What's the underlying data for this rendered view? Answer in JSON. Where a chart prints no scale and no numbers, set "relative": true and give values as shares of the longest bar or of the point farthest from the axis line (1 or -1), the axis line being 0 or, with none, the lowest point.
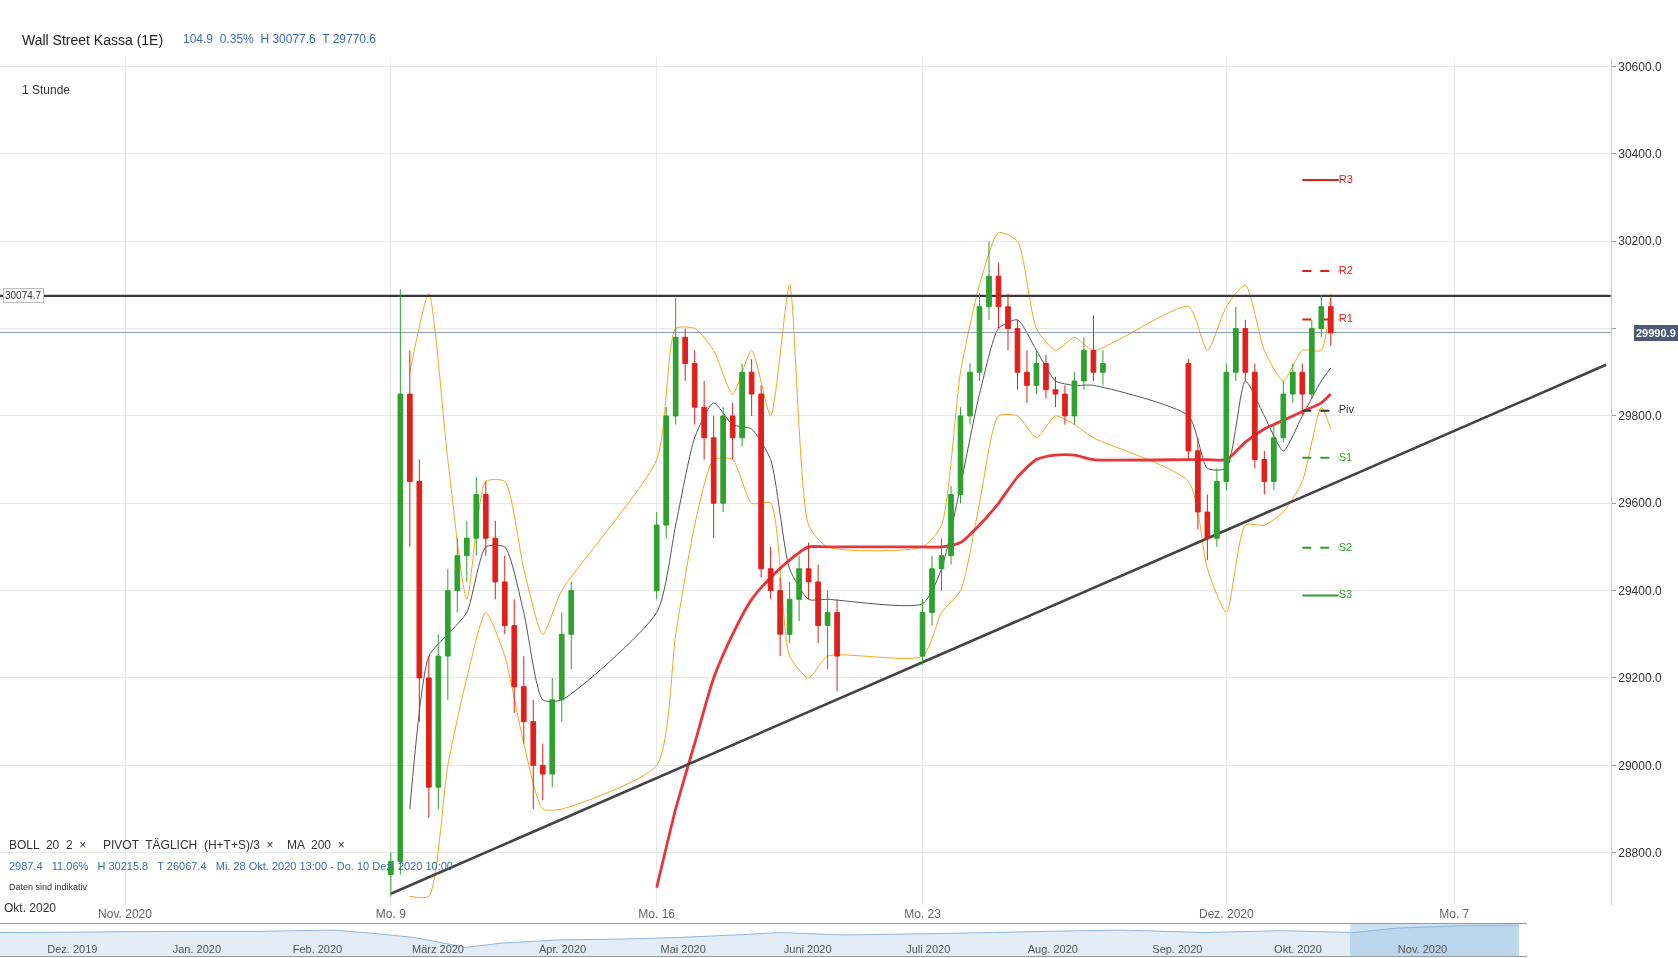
{
  "chart_data": [
    {
      "type": "candlestick",
      "title": "Wall Street Kassa (1E)",
      "subtitle": "104.9  0.35%  H 30077.6  T 29770.6",
      "annotations": [
        "1 Stunde",
        "BOLL  20  2  ×",
        "PIVOT  TÄGLICH  (H+T+S)/3  ×",
        "MA  200  ×",
        "2987.4   11.06%   H 30215.8   T 26067.4   Mi. 28 Okt. 2020 13:00 - Do. 10 Dez. 2020 10:00",
        "Daten sind indikativ",
        "Okt. 2020"
      ],
      "x": [
        "2020-11-09T00:00",
        "2020-11-09T06:00",
        "2020-11-09T12:00",
        "2020-11-09T18:00",
        "2020-11-10T00:00",
        "2020-11-10T06:00",
        "2020-11-10T12:00",
        "2020-11-10T18:00",
        "2020-11-11T00:00",
        "2020-11-11T06:00",
        "2020-11-11T12:00",
        "2020-11-11T18:00",
        "2020-11-12T00:00",
        "2020-11-12T06:00",
        "2020-11-12T12:00",
        "2020-11-12T18:00",
        "2020-11-13T00:00",
        "2020-11-13T06:00",
        "2020-11-13T12:00",
        "2020-11-13T18:00",
        "2020-11-16T00:00",
        "2020-11-16T06:00",
        "2020-11-16T12:00",
        "2020-11-16T18:00",
        "2020-11-17T00:00",
        "2020-11-17T06:00",
        "2020-11-17T12:00",
        "2020-11-17T18:00",
        "2020-11-18T00:00",
        "2020-11-18T06:00",
        "2020-11-18T12:00",
        "2020-11-18T18:00",
        "2020-11-19T00:00",
        "2020-11-19T06:00",
        "2020-11-19T12:00",
        "2020-11-19T18:00",
        "2020-11-20T00:00",
        "2020-11-20T06:00",
        "2020-11-20T12:00",
        "2020-11-20T18:00",
        "2020-11-23T00:00",
        "2020-11-23T06:00",
        "2020-11-23T12:00",
        "2020-11-23T18:00",
        "2020-11-24T00:00",
        "2020-11-24T06:00",
        "2020-11-24T12:00",
        "2020-11-24T18:00",
        "2020-11-25T00:00",
        "2020-11-25T06:00",
        "2020-11-25T12:00",
        "2020-11-25T18:00",
        "2020-11-26T00:00",
        "2020-11-26T06:00",
        "2020-11-26T12:00",
        "2020-11-26T18:00",
        "2020-11-27T00:00",
        "2020-11-27T06:00",
        "2020-11-27T12:00",
        "2020-11-27T18:00",
        "2020-11-30T00:00",
        "2020-11-30T06:00",
        "2020-11-30T12:00",
        "2020-11-30T18:00",
        "2020-12-01T00:00",
        "2020-12-01T06:00",
        "2020-12-01T12:00",
        "2020-12-01T18:00",
        "2020-12-02T00:00",
        "2020-12-02T06:00",
        "2020-12-02T12:00",
        "2020-12-02T18:00",
        "2020-12-03T00:00",
        "2020-12-03T06:00",
        "2020-12-03T12:00",
        "2020-12-03T18:00"
      ],
      "ohlc": [
        [
          28750,
          28800,
          28700,
          28780
        ],
        [
          28780,
          30090,
          28750,
          29850
        ],
        [
          29850,
          29950,
          29500,
          29650
        ],
        [
          29650,
          29700,
          29100,
          29200
        ],
        [
          29200,
          29250,
          28880,
          28950
        ],
        [
          28950,
          29300,
          28900,
          29250
        ],
        [
          29250,
          29450,
          29150,
          29400
        ],
        [
          29400,
          29520,
          29350,
          29480
        ],
        [
          29480,
          29560,
          29420,
          29520
        ],
        [
          29520,
          29660,
          29480,
          29620
        ],
        [
          29620,
          29650,
          29480,
          29520
        ],
        [
          29520,
          29560,
          29380,
          29420
        ],
        [
          29420,
          29480,
          29300,
          29320
        ],
        [
          29320,
          29380,
          29120,
          29180
        ],
        [
          29180,
          29250,
          29050,
          29100
        ],
        [
          29100,
          29150,
          28900,
          29000
        ],
        [
          29000,
          29050,
          28920,
          28980
        ],
        [
          28980,
          29200,
          28950,
          29150
        ],
        [
          29150,
          29350,
          29100,
          29300
        ],
        [
          29300,
          29420,
          29220,
          29400
        ],
        [
          29400,
          29580,
          29380,
          29550
        ],
        [
          29550,
          29820,
          29520,
          29800
        ],
        [
          29800,
          30070,
          29780,
          29980
        ],
        [
          29980,
          30000,
          29880,
          29920
        ],
        [
          29920,
          29950,
          29780,
          29820
        ],
        [
          29820,
          29880,
          29700,
          29750
        ],
        [
          29750,
          29800,
          29520,
          29600
        ],
        [
          29600,
          29820,
          29580,
          29800
        ],
        [
          29800,
          29830,
          29700,
          29750
        ],
        [
          29750,
          29920,
          29730,
          29900
        ],
        [
          29900,
          29930,
          29800,
          29850
        ],
        [
          29850,
          29870,
          29430,
          29450
        ],
        [
          29450,
          29500,
          29380,
          29400
        ],
        [
          29400,
          29430,
          29250,
          29300
        ],
        [
          29300,
          29420,
          29280,
          29380
        ],
        [
          29380,
          29480,
          29330,
          29450
        ],
        [
          29450,
          29510,
          29380,
          29420
        ],
        [
          29420,
          29460,
          29280,
          29320
        ],
        [
          29320,
          29400,
          29220,
          29350
        ],
        [
          29350,
          29380,
          29170,
          29250
        ],
        [
          29250,
          29380,
          29230,
          29350
        ],
        [
          29350,
          29480,
          29320,
          29450
        ],
        [
          29450,
          29520,
          29400,
          29480
        ],
        [
          29480,
          29640,
          29460,
          29620
        ],
        [
          29620,
          29820,
          29600,
          29800
        ],
        [
          29800,
          29920,
          29780,
          29900
        ],
        [
          29900,
          30080,
          29880,
          30050
        ],
        [
          30050,
          30200,
          30020,
          30120
        ],
        [
          30120,
          30150,
          30000,
          30050
        ],
        [
          30050,
          30080,
          29950,
          30000
        ],
        [
          30000,
          30020,
          29860,
          29900
        ],
        [
          29900,
          29950,
          29830,
          29870
        ],
        [
          29870,
          29950,
          29850,
          29920
        ],
        [
          29920,
          29940,
          29840,
          29860
        ],
        [
          29860,
          29890,
          29820,
          29850
        ],
        [
          29850,
          29870,
          29780,
          29800
        ],
        [
          29800,
          29900,
          29780,
          29880
        ],
        [
          29880,
          29980,
          29860,
          29950
        ],
        [
          29950,
          30030,
          29880,
          29900
        ],
        [
          29900,
          29950,
          29870,
          29920
        ],
        [
          29920,
          29930,
          29700,
          29720
        ],
        [
          29720,
          29750,
          29540,
          29580
        ],
        [
          29580,
          29620,
          29470,
          29520
        ],
        [
          29520,
          29680,
          29500,
          29650
        ],
        [
          29650,
          29920,
          29630,
          29900
        ],
        [
          29900,
          30050,
          29880,
          30000
        ],
        [
          30000,
          30020,
          29880,
          29900
        ],
        [
          29900,
          29920,
          29680,
          29700
        ],
        [
          29700,
          29720,
          29620,
          29650
        ],
        [
          29650,
          29780,
          29630,
          29750
        ],
        [
          29750,
          29880,
          29740,
          29850
        ],
        [
          29850,
          29920,
          29830,
          29900
        ],
        [
          29900,
          29920,
          29800,
          29850
        ],
        [
          29850,
          30020,
          29840,
          30000
        ],
        [
          30000,
          30077,
          29980,
          30050
        ],
        [
          30050,
          30070,
          29960,
          29990
        ]
      ],
      "series": [
        {
          "type": "line",
          "color": "#f5a623",
          "x": [
            "2020-11-09T12:00",
            "2020-11-10T00:00",
            "2020-11-10T12:00",
            "2020-11-11T00:00",
            "2020-11-11T12:00",
            "2020-11-12T00:00",
            "2020-11-12T12:00",
            "2020-11-13T00:00",
            "2020-11-13T12:00",
            "2020-11-16T00:00",
            "2020-11-16T12:00",
            "2020-11-17T00:00",
            "2020-11-17T12:00",
            "2020-11-18T00:00",
            "2020-11-18T12:00",
            "2020-11-19T00:00",
            "2020-11-19T12:00",
            "2020-11-20T00:00",
            "2020-11-20T12:00",
            "2020-11-23T00:00",
            "2020-11-23T12:00",
            "2020-11-24T00:00",
            "2020-11-24T12:00",
            "2020-11-25T00:00",
            "2020-11-25T12:00",
            "2020-11-26T00:00",
            "2020-11-26T12:00",
            "2020-11-27T00:00",
            "2020-11-27T12:00",
            "2020-11-30T00:00",
            "2020-11-30T12:00",
            "2020-12-01T00:00",
            "2020-12-01T12:00",
            "2020-12-02T00:00",
            "2020-12-02T12:00",
            "2020-12-03T00:00",
            "2020-12-03T12:00",
            "2020-12-03T18:00"
          ],
          "values": [
            28700,
            28700,
            29000,
            29200,
            29350,
            29250,
            29050,
            28900,
            28900,
            29000,
            29300,
            29550,
            29700,
            29700,
            29600,
            29600,
            29250,
            29200,
            29250,
            29250,
            29350,
            29400,
            29600,
            29800,
            29800,
            29750,
            29800,
            29780,
            29750,
            29650,
            29450,
            29350,
            29550,
            29550,
            29580,
            29650,
            29820,
            29770
          ]
        },
        {
          "type": "line",
          "color": "#f5a623",
          "x": [
            "2020-11-09T12:00",
            "2020-11-10T00:00",
            "2020-11-10T12:00",
            "2020-11-11T00:00",
            "2020-11-11T12:00",
            "2020-11-12T00:00",
            "2020-11-12T12:00",
            "2020-11-13T00:00",
            "2020-11-13T12:00",
            "2020-11-16T00:00",
            "2020-11-16T12:00",
            "2020-11-17T00:00",
            "2020-11-17T12:00",
            "2020-11-18T00:00",
            "2020-11-18T12:00",
            "2020-11-19T00:00",
            "2020-11-19T12:00",
            "2020-11-20T00:00",
            "2020-11-20T12:00",
            "2020-11-23T00:00",
            "2020-11-23T12:00",
            "2020-11-24T00:00",
            "2020-11-24T12:00",
            "2020-11-25T00:00",
            "2020-11-25T12:00",
            "2020-11-26T00:00",
            "2020-11-26T12:00",
            "2020-11-27T00:00",
            "2020-11-27T12:00",
            "2020-11-30T00:00",
            "2020-11-30T12:00",
            "2020-12-01T00:00",
            "2020-12-01T12:00",
            "2020-12-02T00:00",
            "2020-12-02T12:00",
            "2020-12-03T00:00",
            "2020-12-03T12:00",
            "2020-12-03T18:00"
          ],
          "values": [
            29900,
            30080,
            29700,
            29380,
            29650,
            29650,
            29450,
            29300,
            29400,
            29700,
            30000,
            30000,
            29950,
            29850,
            29950,
            29800,
            30100,
            29550,
            29500,
            29500,
            29550,
            29900,
            30100,
            30220,
            30200,
            30000,
            29950,
            29980,
            29950,
            30050,
            29950,
            30050,
            30100,
            29950,
            29880,
            29950,
            29950,
            30080
          ]
        },
        {
          "type": "line",
          "color": "#555555",
          "x": [
            "2020-11-09T12:00",
            "2020-11-10T00:00",
            "2020-11-10T12:00",
            "2020-11-11T00:00",
            "2020-11-11T12:00",
            "2020-11-12T00:00",
            "2020-11-12T12:00",
            "2020-11-13T00:00",
            "2020-11-13T12:00",
            "2020-11-16T00:00",
            "2020-11-16T12:00",
            "2020-11-17T00:00",
            "2020-11-17T12:00",
            "2020-11-18T00:00",
            "2020-11-18T12:00",
            "2020-11-19T00:00",
            "2020-11-19T12:00",
            "2020-11-20T00:00",
            "2020-11-20T12:00",
            "2020-11-23T00:00",
            "2020-11-23T12:00",
            "2020-11-24T00:00",
            "2020-11-24T12:00",
            "2020-11-25T00:00",
            "2020-11-25T12:00",
            "2020-11-26T00:00",
            "2020-11-26T12:00",
            "2020-11-27T00:00",
            "2020-11-27T12:00",
            "2020-11-30T00:00",
            "2020-11-30T12:00",
            "2020-12-01T00:00",
            "2020-12-01T12:00",
            "2020-12-02T00:00",
            "2020-12-02T12:00",
            "2020-12-03T00:00",
            "2020-12-03T12:00",
            "2020-12-03T18:00"
          ],
          "values": [
            28900,
            29250,
            29300,
            29350,
            29500,
            29500,
            29350,
            29150,
            29150,
            29350,
            29550,
            29750,
            29830,
            29780,
            29770,
            29700,
            29450,
            29380,
            29380,
            29370,
            29450,
            null,
            29850,
            30000,
            30020,
            29950,
            29880,
            29870,
            29870,
            29800,
            29680,
            29680,
            29880,
            29800,
            29720,
            29800,
            29880,
            29910
          ]
        },
        {
          "type": "line",
          "color": "#e8343a",
          "x": [
            "2020-11-16T00:00",
            "2020-11-16T12:00",
            "2020-11-17T00:00",
            "2020-11-17T12:00",
            "2020-11-18T00:00",
            "2020-11-18T12:00",
            "2020-11-19T00:00",
            "2020-11-19T12:00",
            "2020-11-20T00:00",
            "2020-11-20T12:00",
            "2020-11-23T00:00",
            "2020-11-23T12:00",
            "2020-11-24T00:00",
            "2020-11-24T12:00",
            "2020-11-25T00:00",
            "2020-11-25T12:00",
            "2020-11-26T00:00",
            "2020-11-26T12:00",
            "2020-11-27T00:00",
            "2020-11-27T12:00",
            "2020-11-30T00:00",
            "2020-11-30T12:00",
            "2020-12-01T00:00",
            "2020-12-01T12:00",
            "2020-12-02T00:00",
            "2020-12-02T12:00",
            "2020-12-03T00:00",
            "2020-12-03T12:00",
            "2020-12-03T18:00"
          ],
          "values": [
            28720,
            28900,
            29050,
            29200,
            29300,
            29380,
            29430,
            29470,
            29500,
            29500,
            29500,
            29500,
            29510,
            29550,
            29600,
            29660,
            29700,
            29710,
            29710,
            29700,
            29700,
            29700,
            29700,
            29740,
            29770,
            29790,
            29810,
            29830,
            29850
          ]
        },
        {
          "type": "line",
          "color": "#444444",
          "x": [
            "2020-11-09T00:00",
            "2020-12-11T00:00"
          ],
          "values": [
            28706,
            29917
          ]
        },
        {
          "type": "line",
          "name": "R3",
          "color": "#e0201b",
          "line_style": "solid",
          "x": [
            "2020-12-03T00:00",
            "2020-12-03T23:00"
          ],
          "values": [
            30340,
            30340
          ]
        },
        {
          "type": "line",
          "name": "R2",
          "color": "#e0201b",
          "line_style": "dashed",
          "x": [
            "2020-12-03T00:00",
            "2020-12-03T23:00"
          ],
          "values": [
            30132,
            30132
          ]
        },
        {
          "type": "line",
          "name": "R1",
          "color": "#e0201b",
          "line_style": "dashed",
          "x": [
            "2020-12-03T00:00",
            "2020-12-03T23:00"
          ],
          "values": [
            30021,
            30021
          ]
        },
        {
          "type": "line",
          "name": "Piv",
          "color": "#333333",
          "line_style": "dashed",
          "x": [
            "2020-12-03T00:00",
            "2020-12-03T23:00"
          ],
          "values": [
            29812,
            29812
          ]
        },
        {
          "type": "line",
          "name": "S1",
          "color": "#2ea12e",
          "line_style": "dashed",
          "x": [
            "2020-12-03T00:00",
            "2020-12-03T23:00"
          ],
          "values": [
            29704,
            29704
          ]
        },
        {
          "type": "line",
          "name": "S2",
          "color": "#2ea12e",
          "line_style": "dashed",
          "x": [
            "2020-12-03T00:00",
            "2020-12-03T23:00"
          ],
          "values": [
            29498,
            29498
          ]
        },
        {
          "type": "line",
          "name": "S3",
          "color": "#2ea12e",
          "line_style": "solid",
          "x": [
            "2020-12-03T00:00",
            "2020-12-03T23:00"
          ],
          "values": [
            29389,
            29389
          ]
        }
      ],
      "ref_lines": [
        {
          "axis": "y",
          "value": 30074.7,
          "label": "30074.7",
          "color": "#3a3a3a"
        },
        {
          "axis": "y",
          "value": 29990.9,
          "label": "29990.9",
          "color": "#8a9bb5"
        }
      ],
      "xlim": [
        "2020-10-29T17:00",
        "2020-12-11T03:00"
      ],
      "xticks": [
        {
          "value": "2020-11-02",
          "label": "Nov. 2020"
        },
        {
          "value": "2020-11-09",
          "label": "Mo. 9"
        },
        {
          "value": "2020-11-16",
          "label": "Mo. 16"
        },
        {
          "value": "2020-11-23",
          "label": "Mo. 23"
        },
        {
          "value": "2020-12-01",
          "label": "Dez. 2020"
        },
        {
          "value": "2020-12-07",
          "label": "Mo. 7"
        }
      ],
      "ylim": [
        28680,
        30620
      ],
      "yticks": [
        {
          "value": 28800,
          "label": "28800.0"
        },
        {
          "value": 29000,
          "label": "29000.0"
        },
        {
          "value": 29200,
          "label": "29200.0"
        },
        {
          "value": 29400,
          "label": "29400.0"
        },
        {
          "value": 29600,
          "label": "29600.0"
        },
        {
          "value": 29800,
          "label": "29800.0"
        },
        {
          "value": 30000,
          "label": null
        },
        {
          "value": 30200,
          "label": "30200.0"
        },
        {
          "value": 30400,
          "label": "30400.0"
        },
        {
          "value": 30600,
          "label": "30600.0"
        }
      ],
      "grid": true
    },
    {
      "type": "area",
      "relative": true,
      "color": "#8db6de",
      "x": [
        "2019-11-28",
        "2019-12-15",
        "2020-01-01",
        "2020-01-15",
        "2020-02-01",
        "2020-02-19",
        "2020-03-01",
        "2020-03-10",
        "2020-03-23",
        "2020-04-01",
        "2020-04-15",
        "2020-05-01",
        "2020-05-15",
        "2020-06-01",
        "2020-06-09",
        "2020-06-25",
        "2020-07-15",
        "2020-08-01",
        "2020-08-15",
        "2020-09-02",
        "2020-09-23",
        "2020-10-12",
        "2020-10-30",
        "2020-11-09",
        "2020-11-25",
        "2020-12-10"
      ],
      "values": [
        0.76,
        0.77,
        0.79,
        0.8,
        0.8,
        0.84,
        0.72,
        0.6,
        0.28,
        0.42,
        0.52,
        0.55,
        0.6,
        0.7,
        0.76,
        0.68,
        0.72,
        0.76,
        0.8,
        0.84,
        0.76,
        0.82,
        0.76,
        0.9,
        0.98,
        1
      ],
      "bands": [
        {
          "axis": "x",
          "from": "2020-10-29",
          "to": "2020-12-10",
          "color": "#5b9bd5"
        }
      ],
      "xlim": [
        "2019-11-28",
        "2020-12-12"
      ],
      "xticks": [
        {
          "value": "2019-12-16",
          "label": "Dez. 2019"
        },
        {
          "value": "2020-01-16",
          "label": "Jan. 2020"
        },
        {
          "value": "2020-02-15",
          "label": "Feb. 2020"
        },
        {
          "value": "2020-03-16",
          "label": "März 2020"
        },
        {
          "value": "2020-04-16",
          "label": "Apr. 2020"
        },
        {
          "value": "2020-05-16",
          "label": "Mai 2020"
        },
        {
          "value": "2020-06-16",
          "label": "Juni 2020"
        },
        {
          "value": "2020-07-16",
          "label": "Juli 2020"
        },
        {
          "value": "2020-08-16",
          "label": "Aug. 2020"
        },
        {
          "value": "2020-09-16",
          "label": "Sep. 2020"
        },
        {
          "value": "2020-10-16",
          "label": "Okt. 2020"
        },
        {
          "value": "2020-11-16",
          "label": "Nov. 2020"
        }
      ],
      "tick_labels": "x",
      "grid": false
    }
  ]
}
